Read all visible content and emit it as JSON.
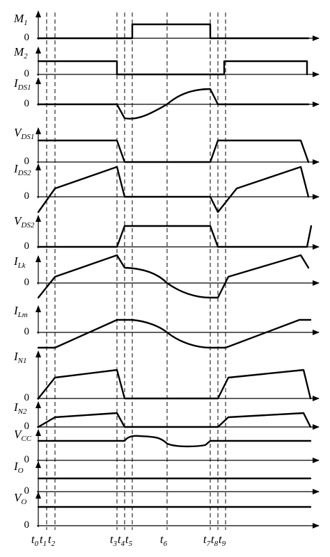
{
  "signals": [
    {
      "id": "m1",
      "main": "M",
      "sub": "1",
      "zero": "0"
    },
    {
      "id": "m2",
      "main": "M",
      "sub": "2",
      "zero": "0"
    },
    {
      "id": "ids1",
      "main": "I",
      "sub": "DS1",
      "zero": "0"
    },
    {
      "id": "vds1",
      "main": "V",
      "sub": "DS1",
      "zero": "0"
    },
    {
      "id": "ids2",
      "main": "I",
      "sub": "DS2",
      "zero": "0"
    },
    {
      "id": "vds2",
      "main": "V",
      "sub": "DS2",
      "zero": "0"
    },
    {
      "id": "ilk",
      "main": "I",
      "sub": "Lk",
      "zero": "0"
    },
    {
      "id": "ilm",
      "main": "I",
      "sub": "Lm",
      "zero": "0"
    },
    {
      "id": "in1",
      "main": "I",
      "sub": "N1",
      "zero": "0"
    },
    {
      "id": "in2",
      "main": "I",
      "sub": "N2",
      "zero": "0"
    },
    {
      "id": "vcc",
      "main": "V",
      "sub": "CC",
      "zero": "0"
    },
    {
      "id": "io",
      "main": "I",
      "sub": "O",
      "zero": "0"
    },
    {
      "id": "vo",
      "main": "V",
      "sub": "O",
      "zero": "0"
    }
  ],
  "time_markers": [
    {
      "main": "t",
      "sub": "0"
    },
    {
      "main": "t",
      "sub": "1"
    },
    {
      "main": "t",
      "sub": "2"
    },
    {
      "main": "t",
      "sub": "3"
    },
    {
      "main": "t",
      "sub": "4"
    },
    {
      "main": "t",
      "sub": "5"
    },
    {
      "main": "t",
      "sub": "6"
    },
    {
      "main": "t",
      "sub": "7"
    },
    {
      "main": "t",
      "sub": "8"
    },
    {
      "main": "t",
      "sub": "9"
    }
  ]
}
